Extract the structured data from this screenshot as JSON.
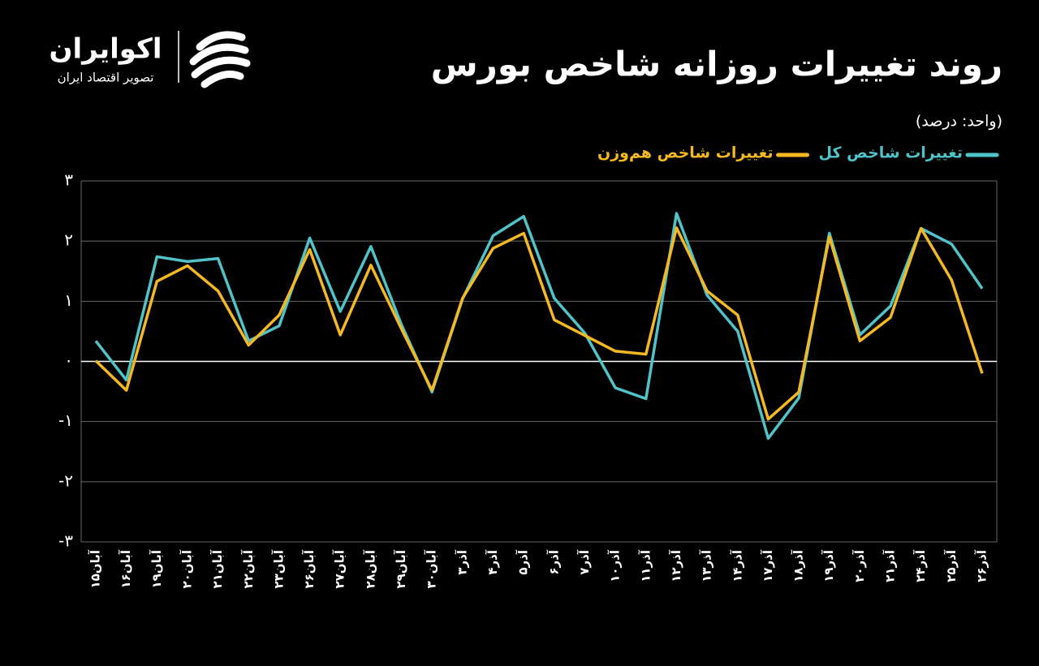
{
  "brand": {
    "name": "اکوایران",
    "tagline": "تصویر اقتصاد ایران"
  },
  "chart_data": {
    "type": "line",
    "title": "روند تغییرات روزانه شاخص بورس",
    "subtitle": "(واحد: درصد)",
    "categories": [
      "آبان۱۵",
      "آبان۱۶",
      "آبان۱۹",
      "آبان۲۰",
      "آبان۲۱",
      "آبان۲۲",
      "آبان۲۳",
      "آبان۲۶",
      "آبان۲۷",
      "آبان۲۸",
      "آبان۲۹",
      "آبان۳۰",
      "آذر۳",
      "آذر۴",
      "آذر۵",
      "آذر۶",
      "آذر۷",
      "آذر۱۰",
      "آذر۱۱",
      "آذر۱۲",
      "آذر۱۳",
      "آذر۱۴",
      "آذر۱۷",
      "آذر۱۸",
      "آذر۱۹",
      "آذر۲۰",
      "آذر۲۱",
      "آذر۲۴",
      "آذر۲۵",
      "آذر۲۶"
    ],
    "series": [
      {
        "name": "تغییرات شاخص کل",
        "color": "#4fc3c7",
        "values": [
          0.34,
          -0.31,
          1.74,
          1.66,
          1.71,
          0.34,
          0.59,
          2.05,
          0.83,
          1.91,
          0.61,
          -0.51,
          1.04,
          2.09,
          2.41,
          1.05,
          0.47,
          -0.44,
          -0.62,
          2.46,
          1.1,
          0.5,
          -1.28,
          -0.61,
          2.13,
          0.44,
          0.92,
          2.21,
          1.95,
          1.21
        ]
      },
      {
        "name": "تغییرات شاخص هم‌وزن",
        "color": "#f4b922",
        "values": [
          0.01,
          -0.48,
          1.33,
          1.59,
          1.17,
          0.27,
          0.77,
          1.86,
          0.44,
          1.6,
          0.54,
          -0.48,
          1.05,
          1.88,
          2.13,
          0.69,
          0.43,
          0.17,
          0.12,
          2.22,
          1.17,
          0.77,
          -0.96,
          -0.51,
          2.07,
          0.34,
          0.73,
          2.21,
          1.35,
          -0.2
        ]
      }
    ],
    "ylim": [
      -3,
      3
    ],
    "yticks": [
      {
        "value": -3,
        "label": "-۳"
      },
      {
        "value": -2,
        "label": "-۲"
      },
      {
        "value": -1,
        "label": "-۱"
      },
      {
        "value": 0,
        "label": "۰"
      },
      {
        "value": 1,
        "label": "۱"
      },
      {
        "value": 2,
        "label": "۲"
      },
      {
        "value": 3,
        "label": "۳"
      }
    ],
    "grid": true
  }
}
